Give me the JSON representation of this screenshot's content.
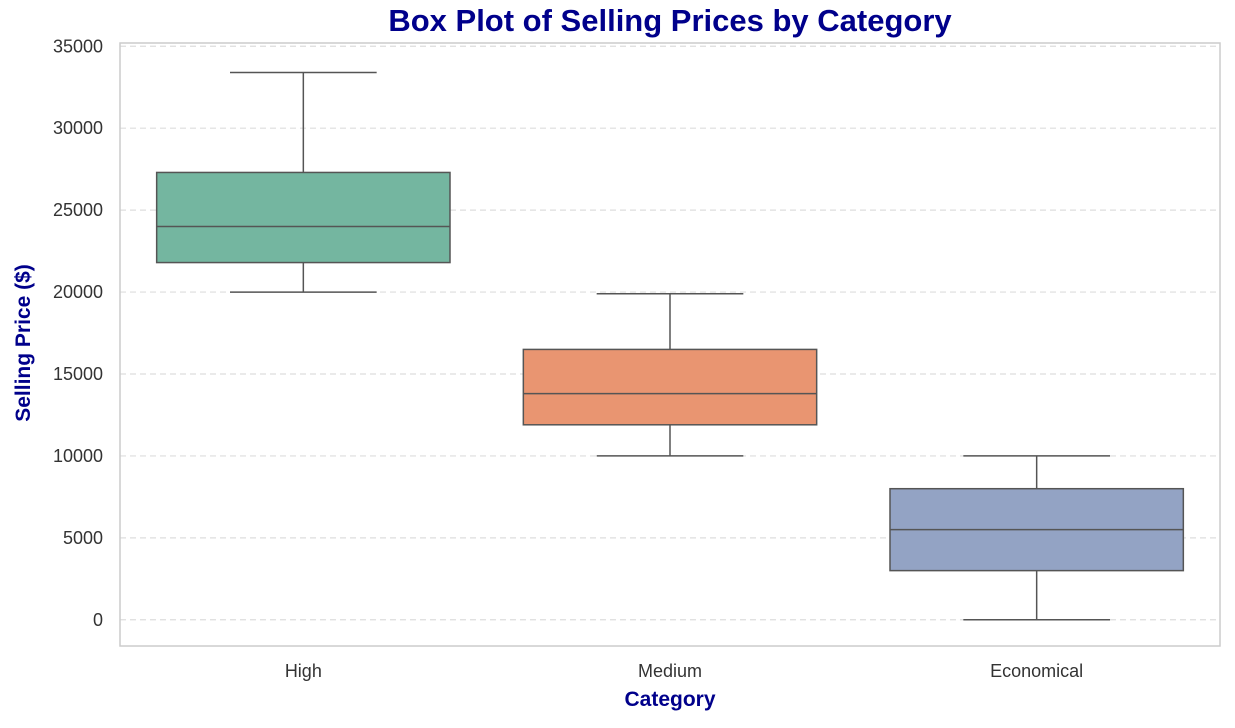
{
  "chart_data": {
    "type": "box",
    "title": "Box Plot of Selling Prices by Category",
    "xlabel": "Category",
    "ylabel": "Selling Price ($)",
    "ylim": [
      -1600,
      35200
    ],
    "yticks": [
      0,
      5000,
      10000,
      15000,
      20000,
      25000,
      30000,
      35000
    ],
    "grid": {
      "y": true,
      "x": false,
      "style": "dashed"
    },
    "categories": [
      "High",
      "Medium",
      "Economical"
    ],
    "boxes": [
      {
        "category": "High",
        "whisker_low": 20000,
        "q1": 21800,
        "median": 24000,
        "q3": 27300,
        "whisker_high": 33400,
        "color": "#74b6a0"
      },
      {
        "category": "Medium",
        "whisker_low": 10000,
        "q1": 11900,
        "median": 13800,
        "q3": 16500,
        "whisker_high": 19900,
        "color": "#e99571"
      },
      {
        "category": "Economical",
        "whisker_low": 0,
        "q1": 3000,
        "median": 5500,
        "q3": 8000,
        "whisker_high": 10000,
        "color": "#93a3c4"
      }
    ],
    "colors": {
      "title": "#00008b",
      "axis_label": "#00008b",
      "tick": "#333333",
      "frame": "#cccccc",
      "grid": "#dddddd",
      "box_edge": "#555555"
    }
  }
}
